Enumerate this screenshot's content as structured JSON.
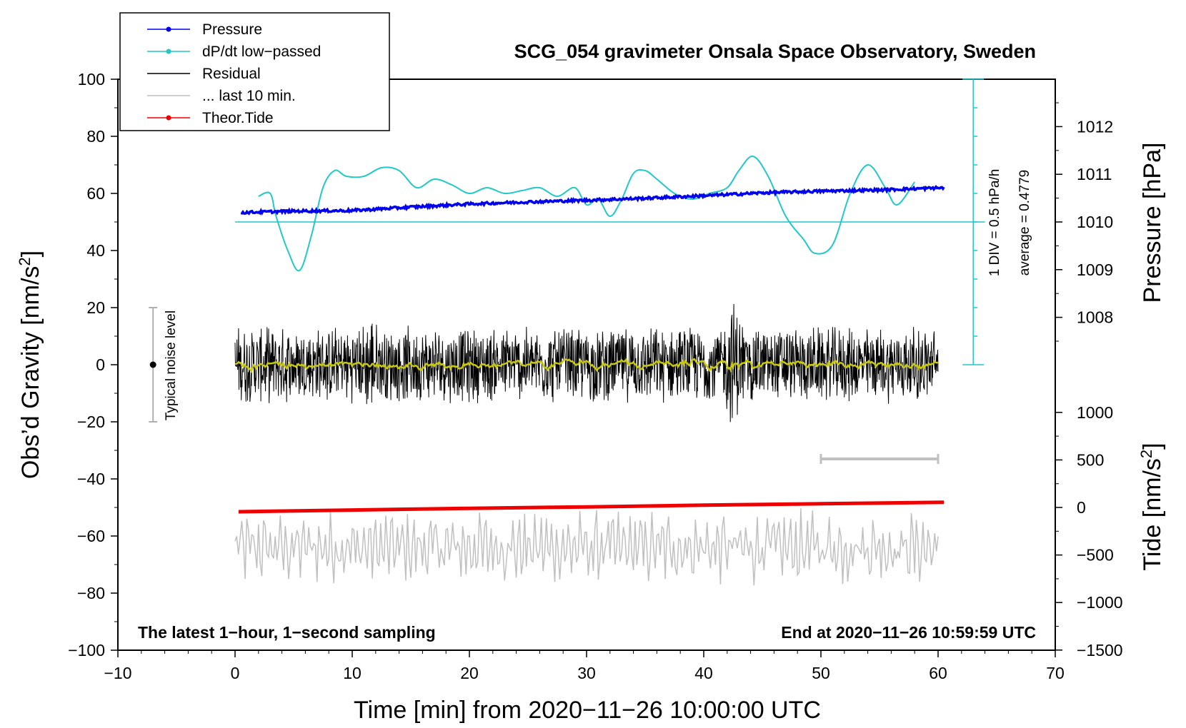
{
  "chart_data": {
    "type": "line",
    "title": "SCG_054 gravimeter Onsala Space Observatory, Sweden",
    "xlabel": "Time [min] from 2020−11−26 10:00:00 UTC",
    "ylabel_left_main": "Obs’d Gravity [nm/s",
    "ylabel_left_sup": "2",
    "ylabel_left_end": "]",
    "ylabel_right_pressure": "Pressure [hPa]",
    "ylabel_right_tide_main": "Tide [nm/s",
    "ylabel_right_tide_sup": "2",
    "ylabel_right_tide_end": "]",
    "xlim": [
      -10,
      70
    ],
    "ylim": [
      -100,
      100
    ],
    "x_ticks": [
      "−10",
      "0",
      "10",
      "20",
      "30",
      "40",
      "50",
      "60",
      "70"
    ],
    "x_tick_values": [
      -10,
      0,
      10,
      20,
      30,
      40,
      50,
      60,
      70
    ],
    "y_ticks": [
      "100",
      "80",
      "60",
      "40",
      "20",
      "0",
      "−20",
      "−40",
      "−60",
      "−80",
      "−100"
    ],
    "y_tick_values": [
      100,
      80,
      60,
      40,
      20,
      0,
      -20,
      -40,
      -60,
      -80,
      -100
    ],
    "pressure_ticks": [
      "1012",
      "1011",
      "1010",
      "1009",
      "1008"
    ],
    "pressure_tick_values": [
      1012,
      1011,
      1010,
      1009,
      1008
    ],
    "tide_ticks": [
      "1000",
      "500",
      "0",
      "−500",
      "−1000",
      "−1500"
    ],
    "tide_tick_values": [
      1000,
      500,
      0,
      -500,
      -1000,
      -1500
    ],
    "legend": {
      "position": "top-left",
      "entries": [
        {
          "label": "Pressure",
          "color": "#0000ee",
          "marker": true
        },
        {
          "label": "dP/dt low−passed",
          "color": "#20c8c8",
          "marker": true
        },
        {
          "label": "Residual",
          "color": "#000000",
          "marker": false
        },
        {
          "label": "... last 10 min.",
          "color": "#c0c0c0",
          "marker": false
        },
        {
          "label": "Theor.Tide",
          "color": "#ee0000",
          "marker": true
        }
      ]
    },
    "annotations": {
      "bottom_left": "The latest 1−hour, 1−second sampling",
      "bottom_right": "End at 2020−11−26 10:59:59 UTC",
      "noise_label": "Typical noise level",
      "div_label": "1 DIV = 0.5 hPa/h",
      "average_label": "average = 0.4779"
    },
    "noise_bar_range": [
      -20,
      20
    ],
    "noise_bar_x": -7,
    "last10_bar_range": [
      50,
      60
    ],
    "last10_bar_y": -33,
    "dpdt_scale": {
      "x": 63,
      "zero_y": 0,
      "top_y": 100,
      "baseline_y": 50,
      "divisions": 10
    },
    "pressure_axis": {
      "y_at_1010": 50,
      "units_per_hPa": 16.7
    },
    "tide_axis": {
      "y_at_0": -50,
      "units_per_nms2": 0.0333
    },
    "series": [
      {
        "name": "Pressure",
        "color": "#0000ee",
        "x": [
          0.5,
          5,
          10,
          15,
          20,
          25,
          30,
          35,
          40,
          45,
          50,
          55,
          60.5
        ],
        "y": [
          53.3,
          53.8,
          54.0,
          55.2,
          56.3,
          57.0,
          57.6,
          58.3,
          59.2,
          60.2,
          60.8,
          61.2,
          62.0
        ]
      },
      {
        "name": "dP/dt low−passed",
        "color": "#20c8c8",
        "x": [
          2,
          3,
          3.5,
          4.5,
          5.5,
          6.5,
          7.5,
          8.5,
          9.5,
          11,
          12.5,
          14,
          15.5,
          17,
          18.5,
          20,
          21.5,
          23,
          24.5,
          26,
          27.5,
          29,
          30,
          31,
          32,
          33,
          34,
          35,
          36,
          37.5,
          39,
          40.5,
          42,
          43,
          44.2,
          45.5,
          47,
          48.5,
          49.5,
          51,
          52.5,
          54,
          55.5,
          56.5,
          58
        ],
        "y": [
          59,
          60,
          52,
          40,
          33,
          45,
          62,
          68,
          66,
          66,
          69,
          68,
          62,
          65,
          63,
          60,
          62,
          60,
          61,
          62,
          59,
          62,
          56,
          58,
          52,
          58,
          67,
          68,
          65,
          60,
          58,
          60,
          62,
          68,
          73,
          66,
          52,
          44,
          39,
          42,
          60,
          70,
          62,
          56,
          64
        ]
      },
      {
        "name": "Residual",
        "color": "#000000",
        "x_range": [
          0,
          60
        ],
        "amplitude": 14,
        "smooth_color": "#c8c810"
      },
      {
        "name": "... last 10 min.",
        "color": "#c0c0c0",
        "x_range": [
          0,
          60
        ],
        "center": -64,
        "amplitude": 10
      },
      {
        "name": "Theor.Tide",
        "color": "#ee0000",
        "x": [
          0.3,
          10,
          20,
          30,
          40,
          50,
          60.5
        ],
        "y": [
          -51.5,
          -50.9,
          -50.3,
          -49.8,
          -49.2,
          -48.7,
          -48.2
        ]
      }
    ]
  }
}
